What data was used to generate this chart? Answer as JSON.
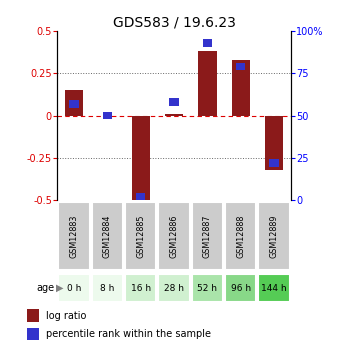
{
  "title": "GDS583 / 19.6.23",
  "samples": [
    "GSM12883",
    "GSM12884",
    "GSM12885",
    "GSM12886",
    "GSM12887",
    "GSM12888",
    "GSM12889"
  ],
  "ages": [
    "0 h",
    "8 h",
    "16 h",
    "28 h",
    "52 h",
    "96 h",
    "144 h"
  ],
  "log_ratio": [
    0.15,
    0.0,
    -0.5,
    0.01,
    0.38,
    0.33,
    -0.32
  ],
  "percentile_rank": [
    57,
    50,
    2,
    58,
    93,
    79,
    22
  ],
  "bar_color": "#8B1A1A",
  "square_color": "#3333CC",
  "ylim": [
    -0.5,
    0.5
  ],
  "yticks_left": [
    -0.5,
    -0.25,
    0.0,
    0.25,
    0.5
  ],
  "yticks_right": [
    0,
    25,
    50,
    75,
    100
  ],
  "zero_line_color": "#DD0000",
  "dotted_color": "#666666",
  "age_colors": [
    "#edfaed",
    "#edfaed",
    "#d0f0d0",
    "#d0f0d0",
    "#aae4aa",
    "#88d888",
    "#55cc55"
  ],
  "gsm_bg": "#cccccc",
  "bar_width": 0.55,
  "title_fontsize": 10,
  "tick_fontsize": 7,
  "label_fontsize": 7,
  "legend_fontsize": 7
}
